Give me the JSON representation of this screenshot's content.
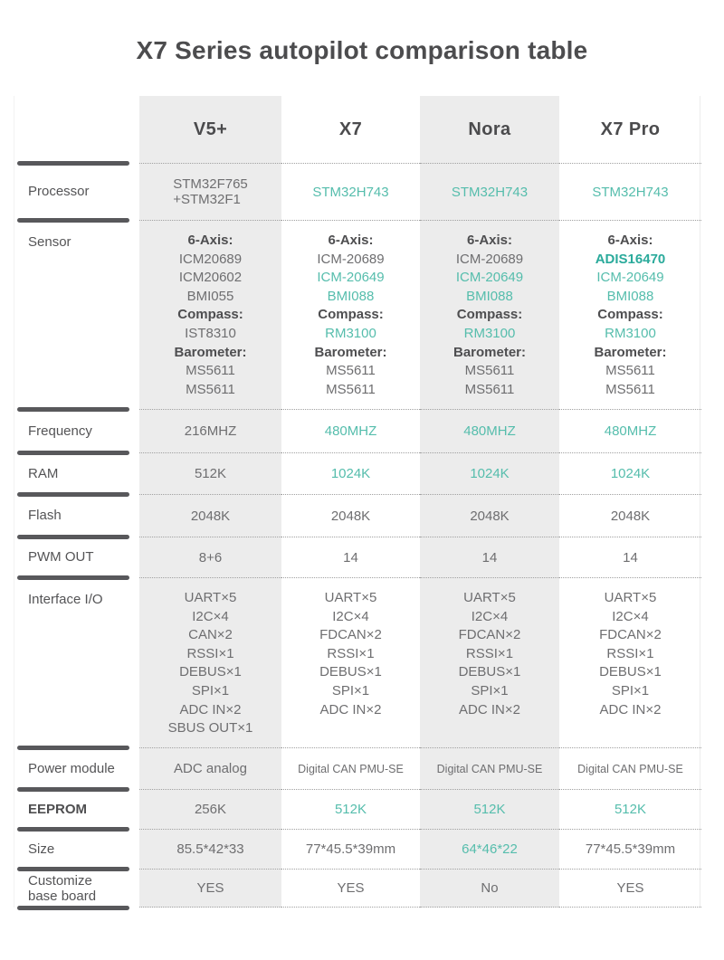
{
  "title": "X7 Series autopilot comparison table",
  "header": {
    "labels": [
      "V5+",
      "X7",
      "Nora",
      "X7 Pro"
    ]
  },
  "rows": {
    "processor": {
      "label": "Processor",
      "v5": "STM32F765\n+STM32F1",
      "x7": "STM32H743",
      "nora": "STM32H743",
      "x7pro": "STM32H743"
    },
    "sensor": {
      "label": "Sensor",
      "v5": [
        "6-Axis:",
        "ICM20689",
        "ICM20602",
        "BMI055",
        "Compass:",
        "IST8310",
        "Barometer:",
        "MS5611",
        "MS5611"
      ],
      "x7": [
        "6-Axis:",
        "ICM-20689",
        "ICM-20649",
        "BMI088",
        "Compass:",
        "RM3100",
        "Barometer:",
        "MS5611",
        "MS5611"
      ],
      "nora": [
        "6-Axis:",
        "ICM-20689",
        "ICM-20649",
        "BMI088",
        "Compass:",
        "RM3100",
        "Barometer:",
        "MS5611",
        "MS5611"
      ],
      "x7pro": [
        "6-Axis:",
        "ADIS16470",
        "ICM-20649",
        "BMI088",
        "Compass:",
        "RM3100",
        "Barometer:",
        "MS5611",
        "MS5611"
      ]
    },
    "frequency": {
      "label": "Frequency",
      "v5": "216MHZ",
      "x7": "480MHZ",
      "nora": "480MHZ",
      "x7pro": "480MHZ"
    },
    "ram": {
      "label": "RAM",
      "v5": "512K",
      "x7": "1024K",
      "nora": "1024K",
      "x7pro": "1024K"
    },
    "flash": {
      "label": "Flash",
      "v5": "2048K",
      "x7": "2048K",
      "nora": "2048K",
      "x7pro": "2048K"
    },
    "pwm": {
      "label": "PWM OUT",
      "v5": "8+6",
      "x7": "14",
      "nora": "14",
      "x7pro": "14"
    },
    "interface": {
      "label": "Interface I/O",
      "v5": [
        "UART×5",
        "I2C×4",
        "CAN×2",
        "RSSI×1",
        "DEBUS×1",
        "SPI×1",
        "ADC IN×2",
        "SBUS OUT×1"
      ],
      "x7": [
        "UART×5",
        "I2C×4",
        "FDCAN×2",
        "RSSI×1",
        "DEBUS×1",
        "SPI×1",
        "ADC IN×2"
      ],
      "nora": [
        "UART×5",
        "I2C×4",
        "FDCAN×2",
        "RSSI×1",
        "DEBUS×1",
        "SPI×1",
        "ADC IN×2"
      ],
      "x7pro": [
        "UART×5",
        "I2C×4",
        "FDCAN×2",
        "RSSI×1",
        "DEBUS×1",
        "SPI×1",
        "ADC IN×2"
      ]
    },
    "power": {
      "label": "Power module",
      "v5": "ADC analog",
      "x7": "Digital CAN PMU-SE",
      "nora": "Digital CAN PMU-SE",
      "x7pro": "Digital CAN PMU-SE"
    },
    "eeprom": {
      "label": "EEPROM",
      "v5": "256K",
      "x7": "512K",
      "nora": "512K",
      "x7pro": "512K"
    },
    "size": {
      "label": "Size",
      "v5": "85.5*42*33",
      "x7": "77*45.5*39mm",
      "nora": "64*46*22",
      "x7pro": "77*45.5*39mm"
    },
    "customize": {
      "label": "Customize\nbase board",
      "v5": "YES",
      "x7": "YES",
      "nora": "No",
      "x7pro": "YES"
    }
  },
  "colors": {
    "accent_teal": "#55bdac",
    "accent_teal_bold": "#2aaa9b",
    "dark_text": "#4e4e50",
    "body_text": "#6e6e70",
    "row_bar": "#58585b",
    "column_shade": "#ececec"
  }
}
